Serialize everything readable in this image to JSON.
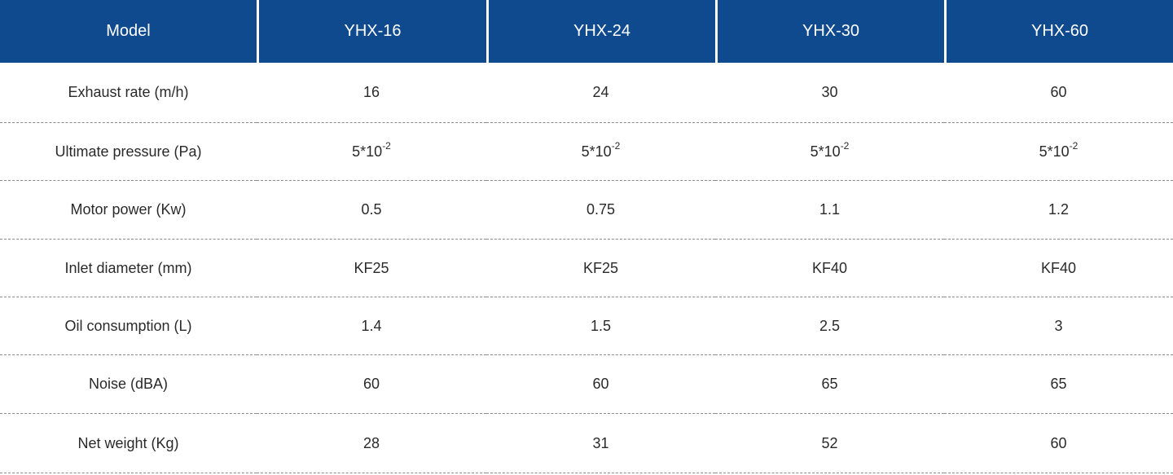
{
  "table": {
    "header": {
      "model_label": "Model",
      "models": [
        "YHX-16",
        "YHX-24",
        "YHX-30",
        "YHX-60"
      ]
    },
    "rows": [
      {
        "label": "Exhaust rate (m/h)",
        "values": [
          "16",
          "24",
          "30",
          "60"
        ]
      },
      {
        "label": "Ultimate pressure (Pa)",
        "values": [
          {
            "base": "5*10",
            "exp": "-2"
          },
          {
            "base": "5*10",
            "exp": "-2"
          },
          {
            "base": "5*10",
            "exp": "-2"
          },
          {
            "base": "5*10",
            "exp": "-2"
          }
        ]
      },
      {
        "label": "Motor power (Kw)",
        "values": [
          "0.5",
          "0.75",
          "1.1",
          "1.2"
        ]
      },
      {
        "label": "Inlet diameter (mm)",
        "values": [
          "KF25",
          "KF25",
          "KF40",
          "KF40"
        ]
      },
      {
        "label": "Oil consumption (L)",
        "values": [
          "1.4",
          "1.5",
          "2.5",
          "3"
        ]
      },
      {
        "label": "Noise (dBA)",
        "values": [
          "60",
          "60",
          "65",
          "65"
        ]
      },
      {
        "label": "Net weight (Kg)",
        "values": [
          "28",
          "31",
          "52",
          "60"
        ]
      }
    ]
  },
  "colors": {
    "header_background": "#104a8e",
    "header_text": "#ffffff",
    "body_text": "#2a2a2a",
    "row_divider": "#8a8a8a"
  }
}
